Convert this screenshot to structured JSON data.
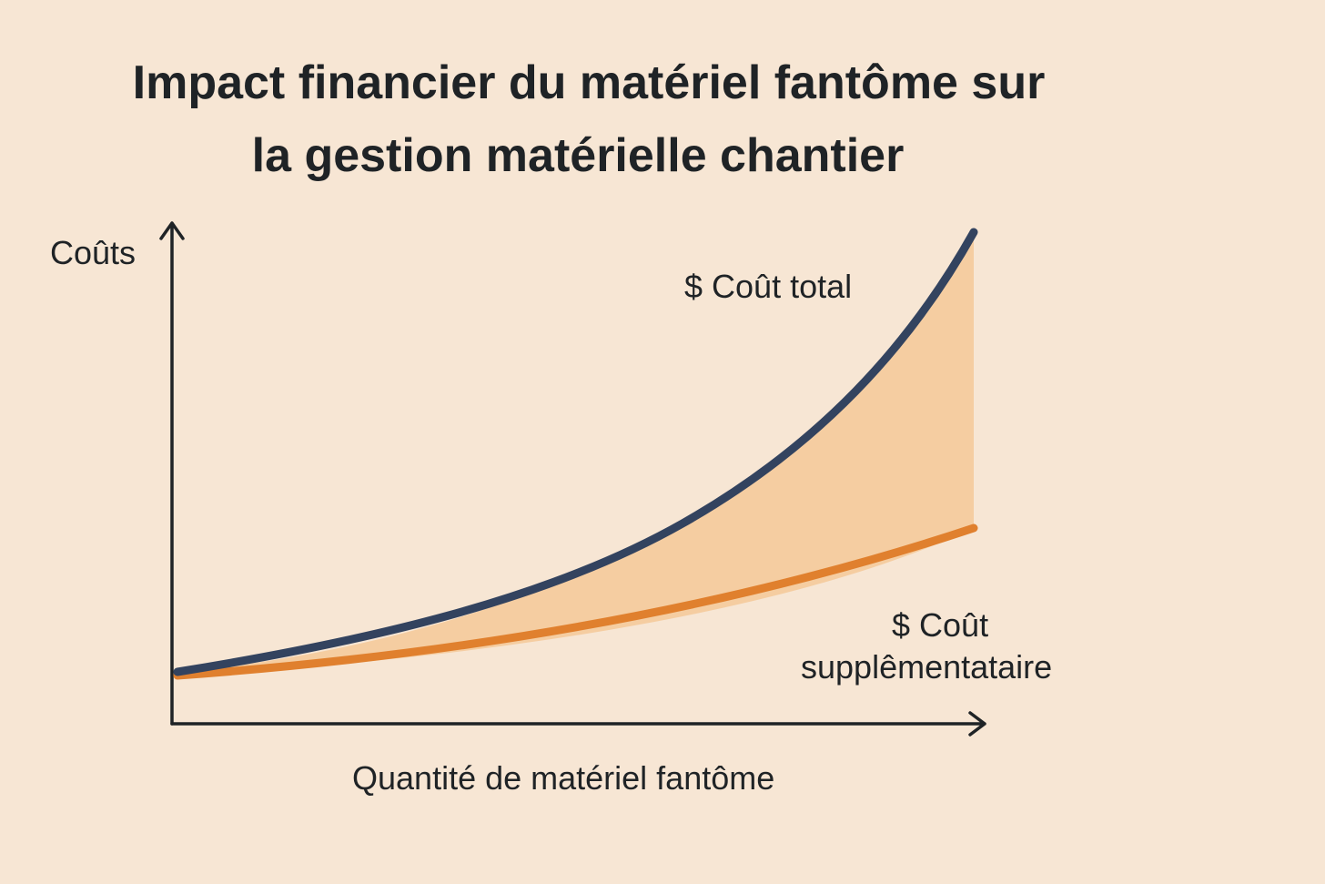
{
  "title": {
    "lines": [
      "Impact financier du matériel fantôme sur",
      "la gestion matérielle chantier"
    ]
  },
  "y_axis_label": "Coûts",
  "x_axis_label": "Quantité de matériel fantôme",
  "curves": [
    {
      "label_lines": [
        "$ Coût total"
      ]
    },
    {
      "label_lines": [
        "$ Coût",
        "supplêmentataire"
      ]
    }
  ]
}
